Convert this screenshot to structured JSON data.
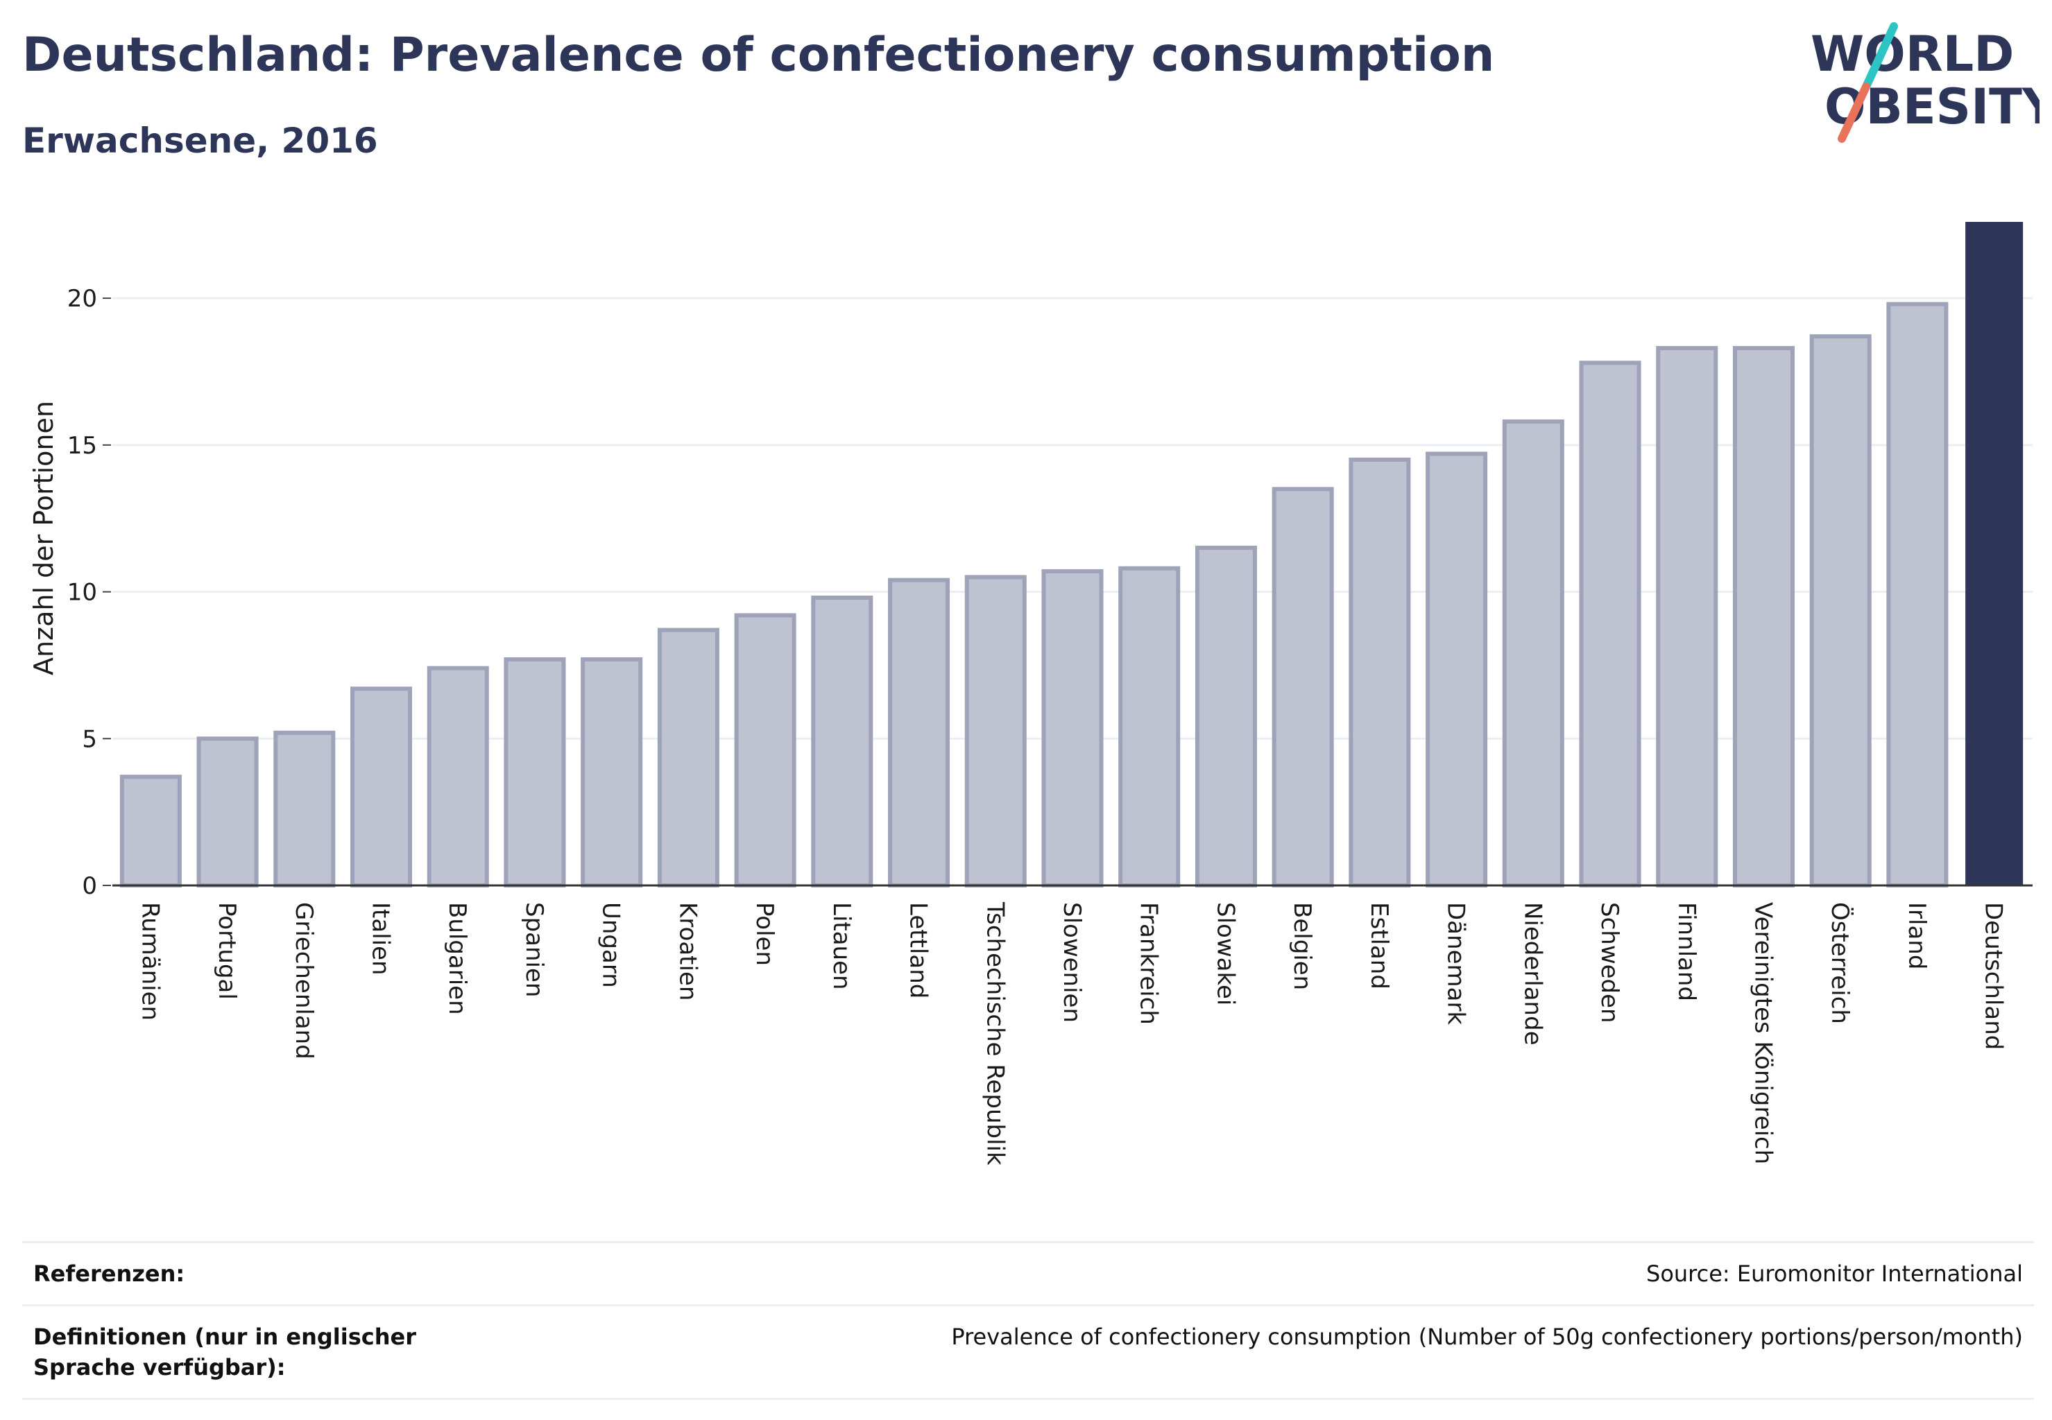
{
  "header": {
    "title": "Deutschland: Prevalence of confectionery consumption",
    "subtitle": "Erwachsene, 2016"
  },
  "logo": {
    "line1": "WORLD",
    "line2": "OBESITY"
  },
  "colors": {
    "highlight": "#2d3559",
    "bar": "#bfc2d1",
    "bar_border": "#9ea3ba",
    "grid": "#eceef4"
  },
  "chart_data": {
    "type": "bar",
    "ylabel": "Anzahl der Portionen",
    "xlabel": "",
    "ylim": [
      0,
      22.6
    ],
    "yticks": [
      0,
      5,
      10,
      15,
      20
    ],
    "grid": true,
    "highlight": "Deutschland",
    "categories": [
      "Rumänien",
      "Portugal",
      "Griechenland",
      "Italien",
      "Bulgarien",
      "Spanien",
      "Ungarn",
      "Kroatien",
      "Polen",
      "Litauen",
      "Lettland",
      "Tschechische Republik",
      "Slowenien",
      "Frankreich",
      "Slowakei",
      "Belgien",
      "Estland",
      "Dänemark",
      "Niederlande",
      "Schweden",
      "Finnland",
      "Vereinigtes Königreich",
      "Österreich",
      "Irland",
      "Deutschland"
    ],
    "values": [
      3.7,
      5.0,
      5.2,
      6.7,
      7.4,
      7.7,
      7.7,
      8.7,
      9.2,
      9.8,
      10.4,
      10.5,
      10.7,
      10.8,
      11.5,
      13.5,
      14.5,
      14.7,
      15.8,
      17.8,
      18.3,
      18.3,
      18.7,
      19.8,
      22.6
    ]
  },
  "footer": {
    "references_label": "Referenzen:",
    "references_value": "Source: Euromonitor International",
    "definitions_label": "Definitionen (nur in englischer Sprache verfügbar):",
    "definitions_value": "Prevalence of confectionery consumption (Number of 50g confectionery portions/person/month)"
  }
}
